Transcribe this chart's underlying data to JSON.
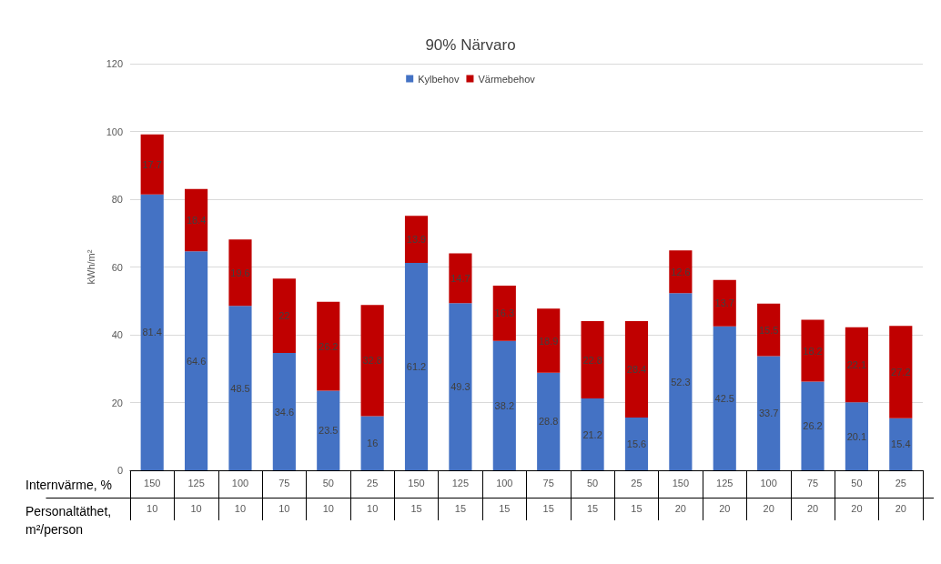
{
  "chart_data": {
    "type": "bar",
    "title": "90% Närvaro",
    "ylabel": "kWh/m²",
    "categories": [
      "150\n10",
      "125\n10",
      "100\n10",
      "75\n10",
      "50\n10",
      "25\n10",
      "150\n15",
      "125\n15",
      "100\n15",
      "75\n15",
      "50\n15",
      "25\n15",
      "150\n20",
      "125\n20",
      "100\n20",
      "75\n20",
      "50\n20",
      "25\n20"
    ],
    "series": [
      {
        "name": "Kylbehov",
        "color": "#4472c4",
        "values": [
          81.4,
          64.6,
          48.5,
          34.6,
          23.5,
          16,
          61.2,
          49.3,
          38.2,
          28.8,
          21.2,
          15.6,
          52.3,
          42.5,
          33.7,
          26.2,
          20.1,
          15.4
        ]
      },
      {
        "name": "Värmebehov",
        "color": "#c00000",
        "values": [
          17.7,
          18.4,
          19.6,
          22,
          26.2,
          32.8,
          13.9,
          14.7,
          16.3,
          18.9,
          22.8,
          28.4,
          12.6,
          13.7,
          15.5,
          18.2,
          22.1,
          27.2
        ]
      }
    ],
    "stacked": true,
    "data_labels": true,
    "ylim": [
      0,
      120
    ],
    "yticks": [
      0,
      20,
      40,
      60,
      80,
      100,
      120
    ],
    "grid": "y",
    "legend": "top",
    "annotations": [
      "Internvärme, %",
      "Personaltäthet, m²/person"
    ]
  }
}
